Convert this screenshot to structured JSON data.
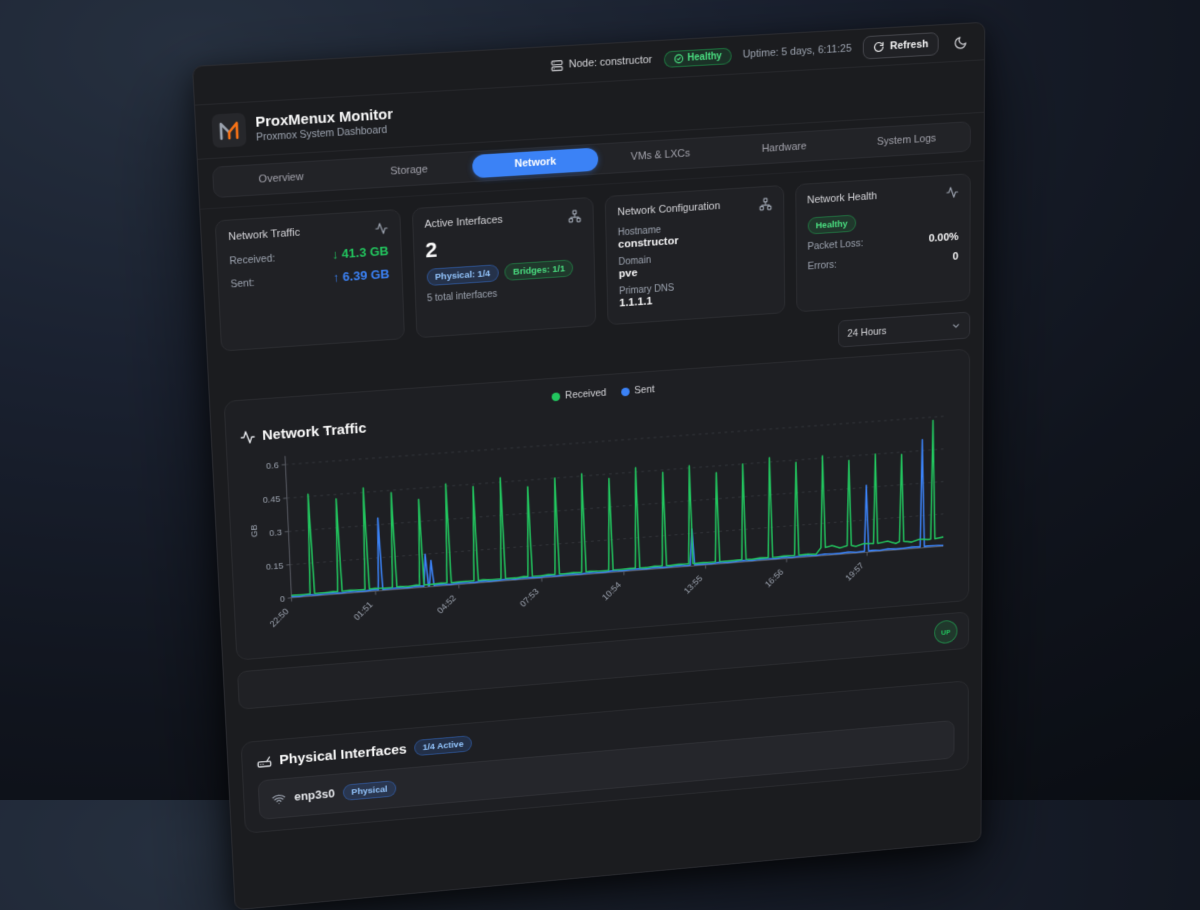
{
  "header": {
    "node_label": "Node: constructor",
    "health_badge": "Healthy",
    "uptime": "Uptime: 5 days, 6:11:25",
    "refresh_label": "Refresh"
  },
  "brand": {
    "title": "ProxMenux Monitor",
    "subtitle": "Proxmox System Dashboard"
  },
  "tabs": [
    {
      "label": "Overview",
      "active": false
    },
    {
      "label": "Storage",
      "active": false
    },
    {
      "label": "Network",
      "active": true
    },
    {
      "label": "VMs & LXCs",
      "active": false
    },
    {
      "label": "Hardware",
      "active": false
    },
    {
      "label": "System Logs",
      "active": false
    }
  ],
  "cards": {
    "traffic": {
      "title": "Network Traffic",
      "received_label": "Received:",
      "received_arrow": "↓",
      "received_value": "41.3 GB",
      "sent_label": "Sent:",
      "sent_arrow": "↑",
      "sent_value": "6.39 GB"
    },
    "interfaces": {
      "title": "Active Interfaces",
      "count": "2",
      "physical_badge": "Physical: 1/4",
      "bridges_badge": "Bridges: 1/1",
      "total": "5 total interfaces"
    },
    "config": {
      "title": "Network Configuration",
      "hostname_label": "Hostname",
      "hostname": "constructor",
      "domain_label": "Domain",
      "domain": "pve",
      "dns_label": "Primary DNS",
      "dns": "1.1.1.1"
    },
    "health": {
      "title": "Network Health",
      "status": "Healthy",
      "packet_loss_label": "Packet Loss:",
      "packet_loss": "0.00%",
      "errors_label": "Errors:",
      "errors": "0"
    }
  },
  "range_select": {
    "value": "24 Hours"
  },
  "chart_section": {
    "title": "Network Traffic"
  },
  "chart_data": {
    "type": "line",
    "title": "Network Traffic",
    "ylabel": "GB",
    "ylim": [
      0,
      0.6
    ],
    "yticks": [
      0,
      0.15,
      0.3,
      0.45,
      0.6
    ],
    "x_hours": 24,
    "grid": true,
    "legend_position": "top-center",
    "xticks": [
      {
        "t": 0,
        "label": "22:50"
      },
      {
        "t": 3.017,
        "label": "01:51"
      },
      {
        "t": 6.033,
        "label": "04:52"
      },
      {
        "t": 9.05,
        "label": "07:53"
      },
      {
        "t": 12.067,
        "label": "10:54"
      },
      {
        "t": 15.083,
        "label": "13:55"
      },
      {
        "t": 18.1,
        "label": "16:56"
      },
      {
        "t": 21.117,
        "label": "19:57"
      }
    ],
    "series": [
      {
        "name": "Received",
        "color": "#22c55e",
        "baseline": 0.012,
        "tail_from": 19.4,
        "tail_level": 0.038,
        "spikes": [
          [
            0.75,
            0.46
          ],
          [
            1.74,
            0.43
          ],
          [
            2.72,
            0.47
          ],
          [
            3.71,
            0.44
          ],
          [
            4.69,
            0.4
          ],
          [
            5.68,
            0.46
          ],
          [
            6.66,
            0.44
          ],
          [
            7.65,
            0.47
          ],
          [
            8.63,
            0.42
          ],
          [
            9.62,
            0.45
          ],
          [
            10.6,
            0.46
          ],
          [
            11.59,
            0.43
          ],
          [
            12.57,
            0.47
          ],
          [
            13.56,
            0.44
          ],
          [
            14.54,
            0.46
          ],
          [
            15.53,
            0.42
          ],
          [
            16.51,
            0.45
          ],
          [
            17.5,
            0.47
          ],
          [
            18.48,
            0.44
          ],
          [
            19.47,
            0.46
          ],
          [
            20.45,
            0.43
          ],
          [
            21.44,
            0.45
          ],
          [
            22.42,
            0.44
          ],
          [
            23.6,
            0.585
          ]
        ]
      },
      {
        "name": "Sent",
        "color": "#3b82f6",
        "baseline": 0.006,
        "spikes": [
          [
            3.2,
            0.33
          ],
          [
            4.85,
            0.15
          ],
          [
            5.05,
            0.12
          ],
          [
            14.6,
            0.17
          ],
          [
            21.1,
            0.31
          ],
          [
            23.2,
            0.5
          ]
        ]
      }
    ]
  },
  "status_row": {
    "badge": "UP"
  },
  "physical_section": {
    "title": "Physical Interfaces",
    "active_badge": "1/4 Active",
    "interfaces": [
      {
        "name": "enp3s0",
        "badge": "Physical"
      }
    ]
  },
  "colors": {
    "accent": "#3b82f6",
    "green": "#22c55e",
    "blue": "#3b82f6",
    "logo_orange": "#f97316",
    "logo_gray": "#9ca3af"
  }
}
